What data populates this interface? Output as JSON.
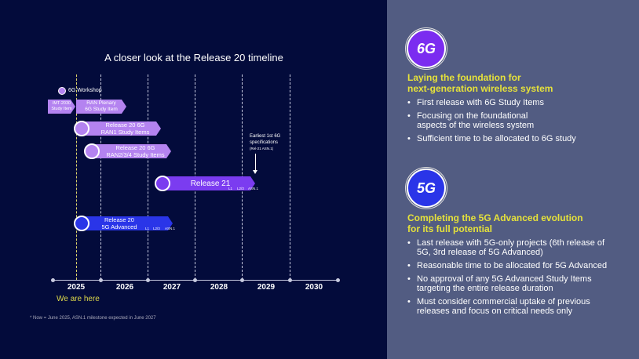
{
  "title": "A closer look at the Release 20 timeline",
  "years": [
    "2025",
    "2026",
    "2027",
    "2028",
    "2029",
    "2030"
  ],
  "items": {
    "workshop": "6G Workshop",
    "imt": [
      "IMT-2030",
      "Study Item"
    ],
    "ran_plenary": [
      "RAN Plenary",
      "6G Study Item"
    ],
    "ran1": [
      "Release 20 6G",
      "RAN1 Study Items"
    ],
    "ran234": [
      "Release 20 6G",
      "RAN2/3/4 Study Items"
    ],
    "rel21": "Release 21",
    "rel20_5ga": [
      "Release 20",
      "5G Advanced"
    ],
    "milestones": [
      "L1",
      "L2/3",
      "ASN.1"
    ]
  },
  "annotation": [
    "Earliest 1st 6G",
    "specifications",
    "(Rel-21 ASN.1)"
  ],
  "we_are_here": "We are here",
  "footnote": "* Now = June 2025, ASN.1 milestone expected in June 2027",
  "colors": {
    "background": "#030b3b",
    "panel": "#525c82",
    "lavender": "#b483f0",
    "purple": "#7b3cf0",
    "blue": "#2a35e8",
    "heading": "#e6e23a"
  },
  "panel": {
    "sec1": {
      "icon": "6g-icon",
      "icon_text": "6G",
      "heading": [
        "Laying the foundation for",
        "next-generation wireless system"
      ],
      "bullets": [
        "First release with 6G Study Items",
        "Focusing on the foundational aspects of the wireless system",
        "Sufficient time to be allocated to 6G study"
      ]
    },
    "sec2": {
      "icon": "5g-icon",
      "icon_text": "5G",
      "heading": [
        "Completing the 5G Advanced evolution",
        "for its full potential"
      ],
      "bullets": [
        "Last release with 5G-only projects (6th release of 5G, 3rd release of 5G Advanced)",
        "Reasonable time to be allocated for 5G Advanced",
        "No approval of any 5G Advanced Study Items targeting the entire release duration",
        "Must consider commercial uptake of previous releases and focus on critical needs only"
      ]
    }
  }
}
